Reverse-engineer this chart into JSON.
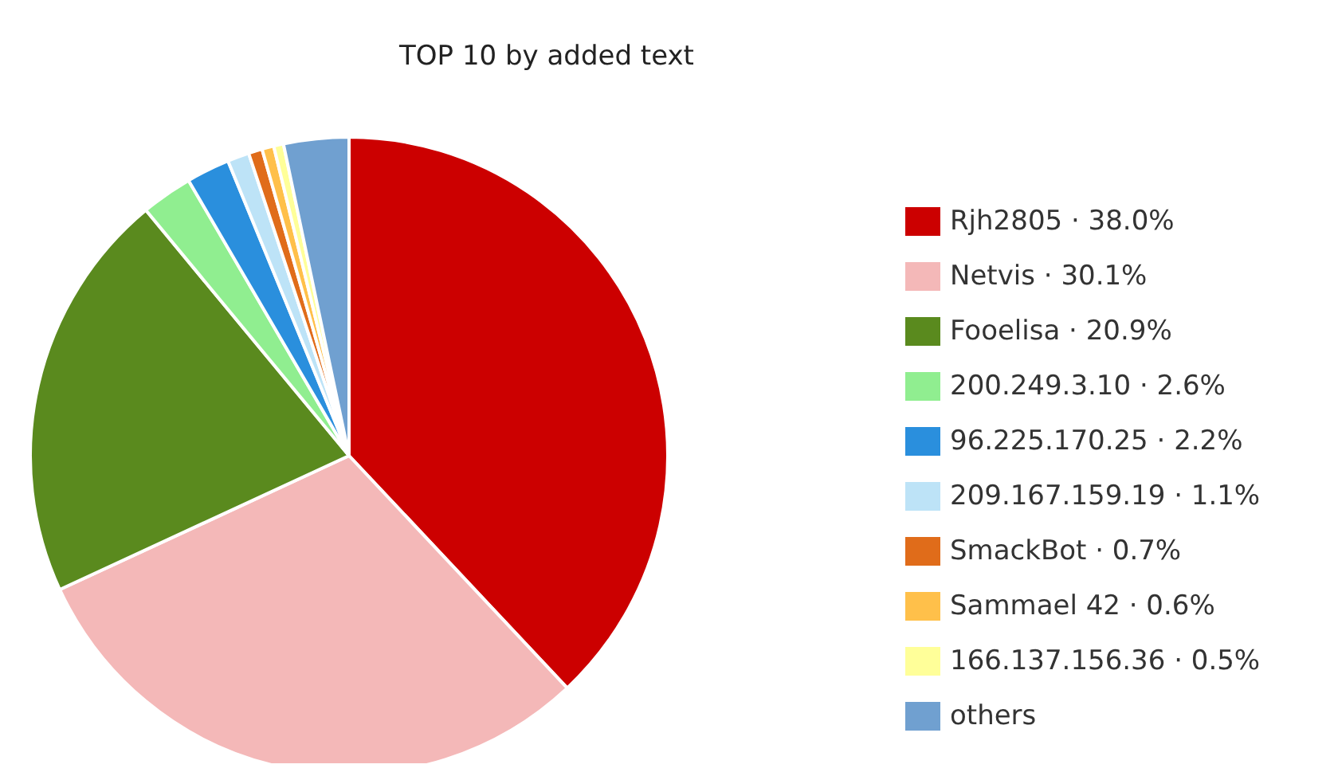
{
  "chart_data": {
    "type": "pie",
    "title": "TOP 10 by added text",
    "categories": [
      "Rjh2805 · 38.0%",
      "Netvis · 30.1%",
      "Fooelisa · 20.9%",
      "200.249.3.10 · 2.6%",
      "96.225.170.25 · 2.2%",
      "209.167.159.19 · 1.1%",
      "SmackBot · 0.7%",
      "Sammael 42 · 0.6%",
      "166.137.156.36 · 0.5%",
      "others"
    ],
    "values": [
      38.0,
      30.1,
      20.9,
      2.6,
      2.2,
      1.1,
      0.7,
      0.6,
      0.5,
      3.3
    ],
    "colors": [
      "#cc0000",
      "#f4b8b8",
      "#5a8a1e",
      "#90ee90",
      "#2a8fdd",
      "#bde3f7",
      "#e06c1a",
      "#ffc04a",
      "#ffff99",
      "#70a0d0"
    ],
    "legend": "right"
  }
}
